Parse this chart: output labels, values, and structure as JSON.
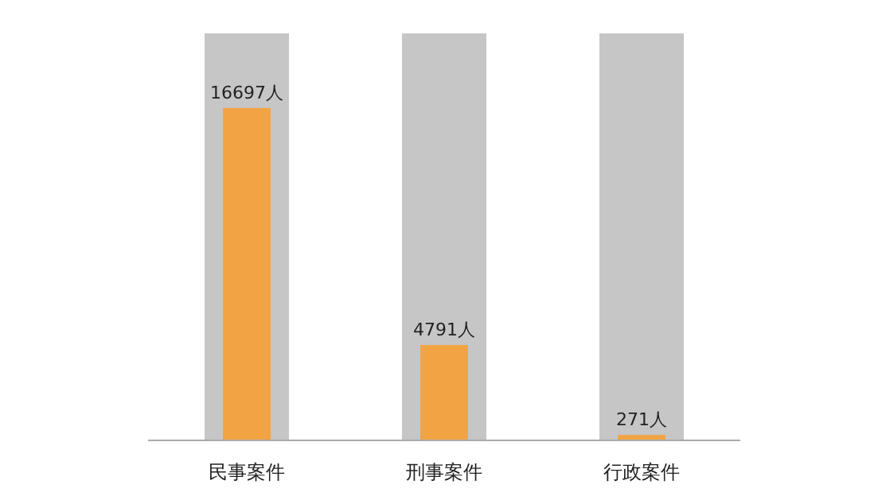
{
  "chart_data": {
    "type": "bar",
    "categories": [
      "民事案件",
      "刑事案件",
      "行政案件"
    ],
    "series": [
      {
        "color": "#c6c6c6",
        "values": [
          20450,
          20450,
          20450
        ]
      },
      {
        "color": "#f2a444",
        "values": [
          16697,
          4791,
          271
        ],
        "value_labels": [
          "16697人",
          "4791人",
          "271人"
        ]
      }
    ],
    "data_labels": false
  }
}
